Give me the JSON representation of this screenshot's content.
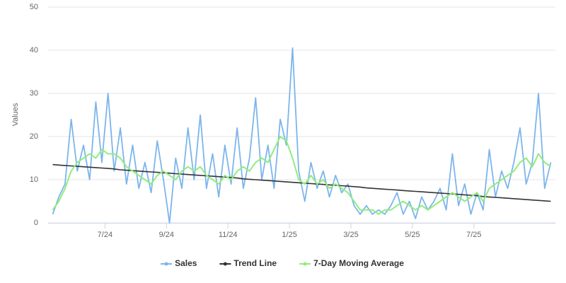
{
  "chart_data": {
    "type": "line",
    "y_label": "Values",
    "x": [
      5.3,
      5.5,
      5.7,
      5.9,
      6.1,
      6.3,
      6.5,
      6.7,
      6.9,
      7.1,
      7.3,
      7.5,
      7.7,
      7.9,
      8.1,
      8.3,
      8.5,
      8.7,
      8.9,
      9.1,
      9.3,
      9.5,
      9.7,
      9.9,
      10.1,
      10.3,
      10.5,
      10.7,
      10.9,
      11.1,
      11.3,
      11.5,
      11.7,
      11.9,
      12.1,
      12.3,
      12.5,
      12.7,
      12.9,
      13.1,
      13.3,
      13.5,
      13.7,
      13.9,
      14.1,
      14.3,
      14.5,
      14.7,
      14.9,
      15.1,
      15.3,
      15.5,
      15.7,
      15.9,
      16.1,
      16.3,
      16.5,
      16.7,
      16.9,
      17.1,
      17.3,
      17.5,
      17.7,
      17.9,
      18.1,
      18.3,
      18.5,
      18.7,
      18.9,
      19.1,
      19.3,
      19.5,
      19.7,
      19.9,
      20.1,
      20.3,
      20.5,
      20.7,
      20.9,
      21.1,
      21.3,
      21.5
    ],
    "series": [
      {
        "name": "Sales",
        "color": "#7cb5ec",
        "width": 1.8,
        "values": [
          2,
          6,
          9,
          24,
          12,
          18,
          10,
          28,
          14,
          30,
          12,
          22,
          9,
          18,
          8,
          14,
          7,
          19,
          10,
          0,
          15,
          8,
          22,
          10,
          25,
          8,
          16,
          6,
          18,
          9,
          22,
          8,
          15,
          29,
          10,
          18,
          8,
          24,
          18,
          40.5,
          12,
          5,
          14,
          8,
          12,
          6,
          11,
          7,
          9,
          4,
          2,
          4,
          2,
          3,
          2,
          4,
          7,
          2,
          5,
          1,
          6,
          3,
          5,
          8,
          3,
          16,
          4,
          9,
          2,
          7,
          3,
          17,
          6,
          12,
          8,
          14,
          22,
          9,
          14,
          30,
          8,
          14
        ]
      },
      {
        "name": "Trend Line",
        "color": "#333333",
        "width": 1.6,
        "values": [
          13.5,
          13.4,
          13.3,
          13.2,
          13.1,
          13.0,
          12.9,
          12.8,
          12.7,
          12.6,
          12.5,
          12.3,
          12.2,
          12.1,
          12.0,
          11.9,
          11.8,
          11.7,
          11.6,
          11.5,
          11.4,
          11.3,
          11.2,
          11.1,
          11.0,
          10.9,
          10.8,
          10.7,
          10.6,
          10.5,
          10.4,
          10.2,
          10.1,
          10.0,
          9.9,
          9.8,
          9.7,
          9.6,
          9.5,
          9.4,
          9.3,
          9.2,
          9.1,
          9.0,
          8.9,
          8.8,
          8.7,
          8.6,
          8.5,
          8.4,
          8.3,
          8.1,
          8.0,
          7.9,
          7.8,
          7.7,
          7.6,
          7.5,
          7.4,
          7.3,
          7.2,
          7.1,
          7.0,
          6.9,
          6.8,
          6.7,
          6.6,
          6.5,
          6.4,
          6.3,
          6.1,
          6.0,
          5.9,
          5.8,
          5.7,
          5.6,
          5.5,
          5.4,
          5.3,
          5.2,
          5.1,
          5.0
        ]
      },
      {
        "name": "7-Day Moving Average",
        "color": "#90ed7d",
        "width": 2,
        "values": [
          3,
          5,
          8,
          12,
          14,
          15,
          16,
          15,
          17,
          16,
          16,
          15,
          13,
          12,
          11,
          10,
          9,
          11,
          12,
          11,
          10,
          12,
          13,
          12,
          13,
          11,
          10,
          9,
          11,
          10,
          12,
          13,
          12,
          14,
          15,
          14,
          17,
          20,
          19,
          15,
          10,
          9,
          11,
          9,
          10,
          8,
          9,
          8,
          7,
          5,
          3,
          3,
          3,
          2,
          3,
          3,
          4,
          5,
          4,
          3,
          4,
          3,
          4,
          5,
          6,
          7,
          6,
          5,
          6,
          7,
          5,
          8,
          9,
          10,
          11,
          12,
          14,
          15,
          13,
          16,
          14,
          13
        ]
      }
    ],
    "xlim": [
      5.15,
      21.65
    ],
    "xticks": [
      {
        "value": 7,
        "label": "7/24"
      },
      {
        "value": 9,
        "label": "9/24"
      },
      {
        "value": 11,
        "label": "11/24"
      },
      {
        "value": 13,
        "label": "1/25"
      },
      {
        "value": 15,
        "label": "3/25"
      },
      {
        "value": 17,
        "label": "5/25"
      },
      {
        "value": 19,
        "label": "7/25"
      }
    ],
    "ylim": [
      0,
      50
    ],
    "yticks": [
      0,
      10,
      20,
      30,
      40,
      50
    ],
    "grid": true,
    "legend": "bottom"
  }
}
